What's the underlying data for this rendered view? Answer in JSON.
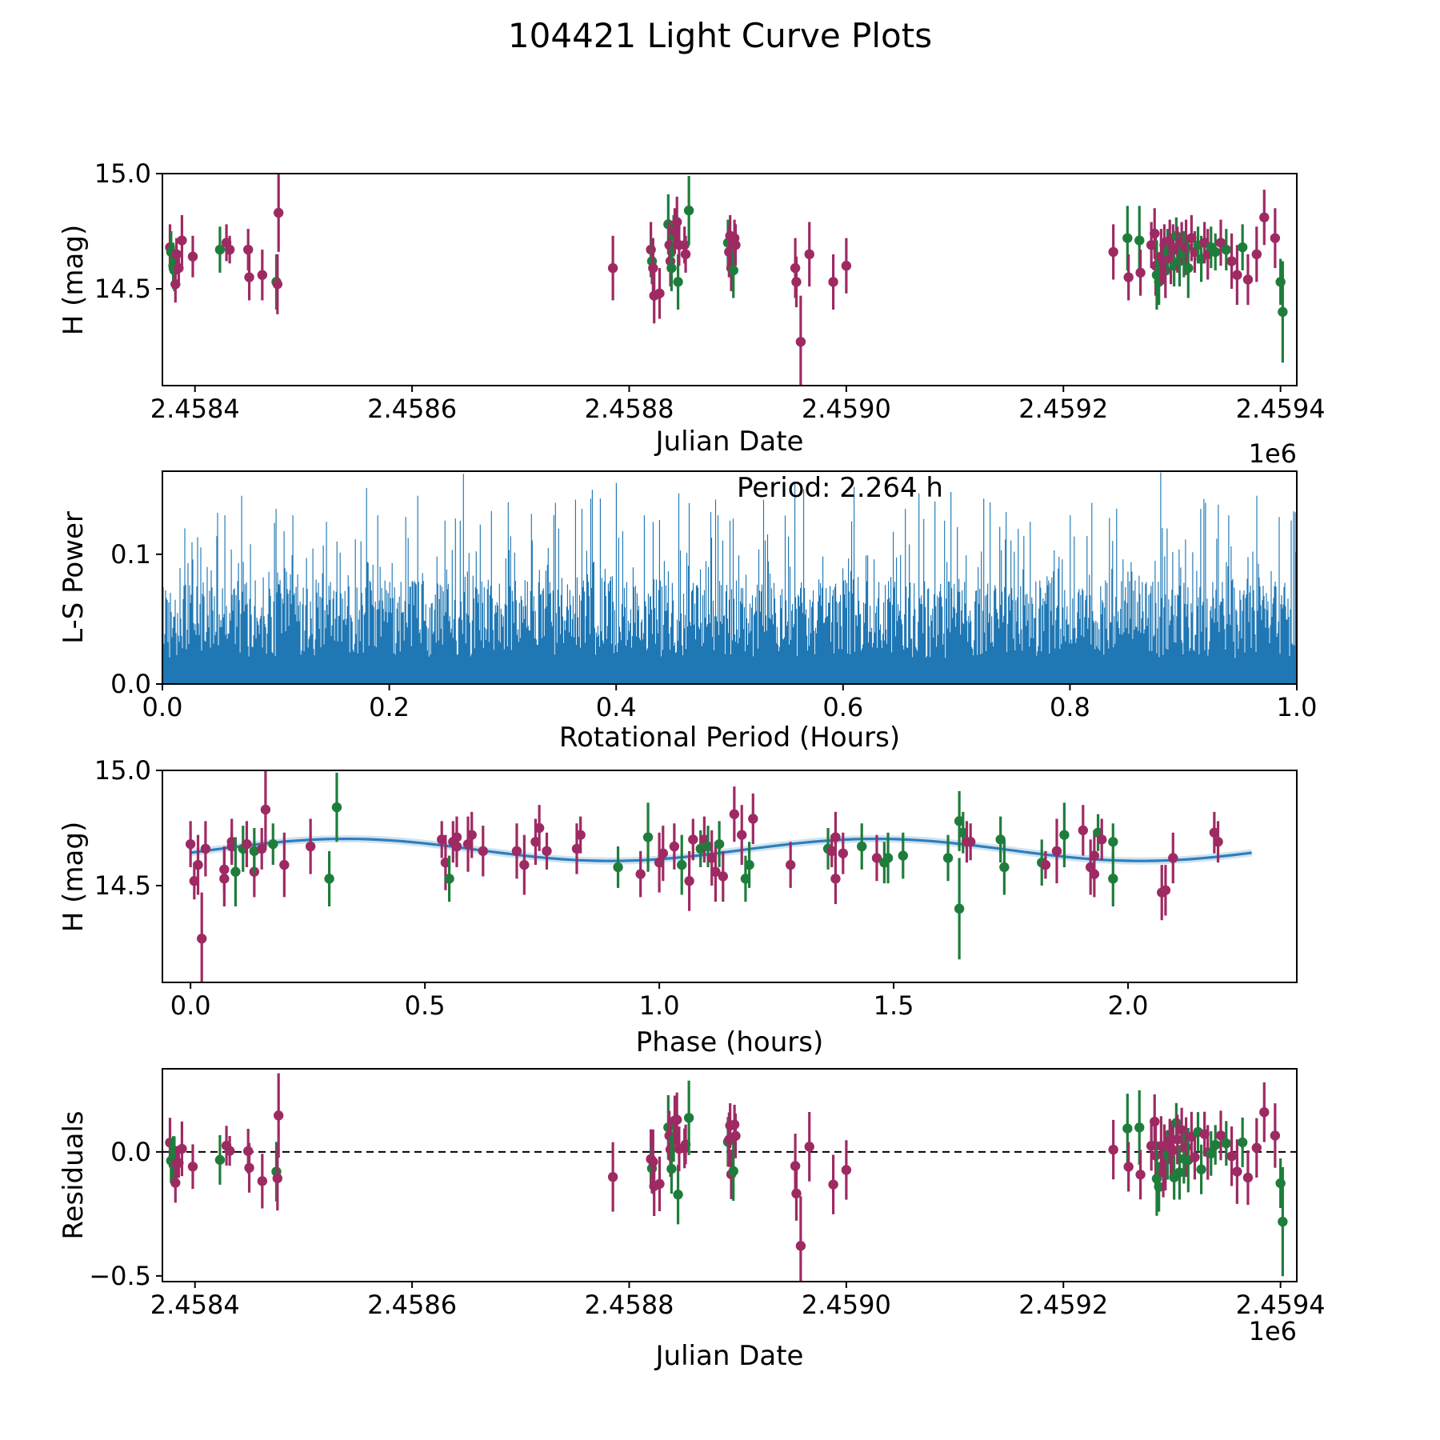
{
  "title": "104421 Light Curve Plots",
  "colors": {
    "green": "#1f7d3c",
    "purple": "#9e2a63",
    "blue": "#1f77b4",
    "fit_blue": "#2e7ebc",
    "axis": "#000000"
  },
  "chart_data": [
    {
      "id": "lightcurve_jd",
      "type": "scatter",
      "xlabel": "Julian Date",
      "ylabel": "H (mag)",
      "x_offset_label": "1e6",
      "xlim": [
        2458370,
        2459415
      ],
      "ylim": [
        14.08,
        15.0
      ],
      "xticks": [
        {
          "v": 2458400,
          "label": "2.4584"
        },
        {
          "v": 2458600,
          "label": "2.4586"
        },
        {
          "v": 2458800,
          "label": "2.4588"
        },
        {
          "v": 2459000,
          "label": "2.4590"
        },
        {
          "v": 2459200,
          "label": "2.4592"
        },
        {
          "v": 2459400,
          "label": "2.4594"
        }
      ],
      "yticks": [
        {
          "v": 15.0,
          "label": "15.0"
        },
        {
          "v": 14.5,
          "label": "14.5"
        }
      ],
      "series_colors": [
        "green",
        "purple"
      ],
      "point_format": [
        "julian_date",
        "H_mag",
        "err_mag",
        "series_index"
      ],
      "points": [
        [
          2458377,
          14.68,
          0.1,
          1
        ],
        [
          2458378,
          14.66,
          0.09,
          0
        ],
        [
          2458380,
          14.6,
          0.1,
          0
        ],
        [
          2458381,
          14.58,
          0.09,
          0
        ],
        [
          2458382,
          14.52,
          0.08,
          1
        ],
        [
          2458383,
          14.65,
          0.07,
          1
        ],
        [
          2458385,
          14.59,
          0.06,
          1
        ],
        [
          2458388,
          14.71,
          0.11,
          1
        ],
        [
          2458398,
          14.64,
          0.09,
          1
        ],
        [
          2458423,
          14.67,
          0.1,
          0
        ],
        [
          2458429,
          14.7,
          0.08,
          1
        ],
        [
          2458432,
          14.67,
          0.06,
          1
        ],
        [
          2458449,
          14.67,
          0.09,
          1
        ],
        [
          2458450,
          14.55,
          0.1,
          1
        ],
        [
          2458462,
          14.56,
          0.11,
          1
        ],
        [
          2458475,
          14.53,
          0.12,
          0
        ],
        [
          2458476,
          14.52,
          0.13,
          1
        ],
        [
          2458477,
          14.83,
          0.17,
          1
        ],
        [
          2458785,
          14.59,
          0.14,
          1
        ],
        [
          2458820,
          14.67,
          0.12,
          1
        ],
        [
          2458821,
          14.62,
          0.1,
          0
        ],
        [
          2458822,
          14.59,
          0.13,
          1
        ],
        [
          2458823,
          14.47,
          0.12,
          1
        ],
        [
          2458828,
          14.48,
          0.11,
          1
        ],
        [
          2458836,
          14.78,
          0.13,
          0
        ],
        [
          2458837,
          14.69,
          0.1,
          1
        ],
        [
          2458838,
          14.62,
          0.11,
          1
        ],
        [
          2458839,
          14.59,
          0.1,
          0
        ],
        [
          2458841,
          14.73,
          0.09,
          0
        ],
        [
          2458842,
          14.75,
          0.1,
          1
        ],
        [
          2458844,
          14.79,
          0.11,
          1
        ],
        [
          2458845,
          14.53,
          0.12,
          0
        ],
        [
          2458846,
          14.69,
          0.09,
          1
        ],
        [
          2458851,
          14.69,
          0.08,
          1
        ],
        [
          2458852,
          14.65,
          0.08,
          1
        ],
        [
          2458855,
          14.84,
          0.15,
          0
        ],
        [
          2458891,
          14.7,
          0.1,
          0
        ],
        [
          2458892,
          14.66,
          0.11,
          1
        ],
        [
          2458893,
          14.73,
          0.09,
          1
        ],
        [
          2458894,
          14.59,
          0.1,
          1
        ],
        [
          2458896,
          14.58,
          0.12,
          0
        ],
        [
          2458897,
          14.72,
          0.08,
          1
        ],
        [
          2458898,
          14.69,
          0.09,
          1
        ],
        [
          2458953,
          14.59,
          0.13,
          1
        ],
        [
          2458954,
          14.53,
          0.11,
          1
        ],
        [
          2458958,
          14.27,
          0.2,
          1
        ],
        [
          2458966,
          14.65,
          0.14,
          1
        ],
        [
          2458988,
          14.53,
          0.12,
          1
        ],
        [
          2459000,
          14.6,
          0.12,
          1
        ],
        [
          2459246,
          14.66,
          0.12,
          1
        ],
        [
          2459259,
          14.72,
          0.14,
          0
        ],
        [
          2459260,
          14.55,
          0.1,
          1
        ],
        [
          2459270,
          14.71,
          0.15,
          0
        ],
        [
          2459271,
          14.57,
          0.1,
          1
        ],
        [
          2459281,
          14.69,
          0.1,
          1
        ],
        [
          2459284,
          14.74,
          0.11,
          1
        ],
        [
          2459285,
          14.6,
          0.13,
          1
        ],
        [
          2459286,
          14.56,
          0.15,
          0
        ],
        [
          2459288,
          14.53,
          0.1,
          0
        ],
        [
          2459290,
          14.64,
          0.12,
          1
        ],
        [
          2459292,
          14.62,
          0.1,
          1
        ],
        [
          2459293,
          14.69,
          0.09,
          1
        ],
        [
          2459294,
          14.58,
          0.12,
          1
        ],
        [
          2459296,
          14.66,
          0.1,
          0
        ],
        [
          2459298,
          14.71,
          0.09,
          1
        ],
        [
          2459299,
          14.63,
          0.11,
          1
        ],
        [
          2459301,
          14.68,
          0.1,
          1
        ],
        [
          2459302,
          14.6,
          0.09,
          0
        ],
        [
          2459304,
          14.73,
          0.08,
          0
        ],
        [
          2459305,
          14.67,
          0.1,
          1
        ],
        [
          2459307,
          14.62,
          0.11,
          0
        ],
        [
          2459309,
          14.7,
          0.09,
          1
        ],
        [
          2459311,
          14.65,
          0.1,
          0
        ],
        [
          2459313,
          14.68,
          0.12,
          1
        ],
        [
          2459315,
          14.59,
          0.13,
          0
        ],
        [
          2459318,
          14.72,
          0.1,
          1
        ],
        [
          2459321,
          14.66,
          0.09,
          1
        ],
        [
          2459324,
          14.69,
          0.08,
          0
        ],
        [
          2459327,
          14.63,
          0.1,
          0
        ],
        [
          2459330,
          14.7,
          0.09,
          1
        ],
        [
          2459333,
          14.65,
          0.11,
          1
        ],
        [
          2459336,
          14.68,
          0.09,
          0
        ],
        [
          2459340,
          14.66,
          0.08,
          0
        ],
        [
          2459345,
          14.7,
          0.1,
          1
        ],
        [
          2459350,
          14.67,
          0.09,
          0
        ],
        [
          2459355,
          14.62,
          0.12,
          1
        ],
        [
          2459360,
          14.56,
          0.13,
          1
        ],
        [
          2459365,
          14.68,
          0.1,
          0
        ],
        [
          2459370,
          14.54,
          0.11,
          1
        ],
        [
          2459378,
          14.65,
          0.12,
          1
        ],
        [
          2459385,
          14.81,
          0.12,
          1
        ],
        [
          2459395,
          14.72,
          0.13,
          1
        ],
        [
          2459400,
          14.53,
          0.1,
          0
        ],
        [
          2459402,
          14.4,
          0.22,
          0
        ]
      ]
    },
    {
      "id": "periodogram",
      "type": "line",
      "xlabel": "Rotational Period (Hours)",
      "ylabel": "L-S Power",
      "annotation": "Period: 2.264 h",
      "best_period_hours": 2.264,
      "xlim": [
        0,
        1
      ],
      "ylim": [
        0,
        0.164
      ],
      "xticks": [
        {
          "v": 0.0,
          "label": "0.0"
        },
        {
          "v": 0.2,
          "label": "0.2"
        },
        {
          "v": 0.4,
          "label": "0.4"
        },
        {
          "v": 0.6,
          "label": "0.6"
        },
        {
          "v": 0.8,
          "label": "0.8"
        },
        {
          "v": 1.0,
          "label": "1.0"
        }
      ],
      "yticks": [
        {
          "v": 0.0,
          "label": "0.0"
        },
        {
          "v": 0.1,
          "label": "0.1"
        }
      ],
      "n_lines": 1418,
      "seed": 42,
      "noise_base": 0.02,
      "noise_span": 0.06,
      "spike_scale": 0.085,
      "spike_exponent": 8,
      "peaks": [
        [
          0.02,
          0.12
        ],
        [
          0.055,
          0.13
        ],
        [
          0.1,
          0.135
        ],
        [
          0.115,
          0.13
        ],
        [
          0.145,
          0.125
        ],
        [
          0.19,
          0.13
        ],
        [
          0.225,
          0.145
        ],
        [
          0.265,
          0.162
        ],
        [
          0.305,
          0.14
        ],
        [
          0.345,
          0.13
        ],
        [
          0.37,
          0.135
        ],
        [
          0.4,
          0.155
        ],
        [
          0.425,
          0.13
        ],
        [
          0.455,
          0.147
        ],
        [
          0.49,
          0.13
        ],
        [
          0.53,
          0.142
        ],
        [
          0.565,
          0.15
        ],
        [
          0.61,
          0.152
        ],
        [
          0.655,
          0.135
        ],
        [
          0.695,
          0.148
        ],
        [
          0.73,
          0.14
        ],
        [
          0.765,
          0.125
        ],
        [
          0.8,
          0.13
        ],
        [
          0.835,
          0.128
        ],
        [
          0.88,
          0.163
        ],
        [
          0.915,
          0.135
        ],
        [
          0.94,
          0.13
        ],
        [
          0.965,
          0.145
        ],
        [
          0.995,
          0.126
        ]
      ]
    },
    {
      "id": "phased_lightcurve",
      "type": "scatter+line",
      "xlabel": "Phase (hours)",
      "ylabel": "H (mag)",
      "xlim": [
        -0.06,
        2.36
      ],
      "ylim": [
        14.08,
        15.0
      ],
      "xticks": [
        {
          "v": 0.0,
          "label": "0.0"
        },
        {
          "v": 0.5,
          "label": "0.5"
        },
        {
          "v": 1.0,
          "label": "1.0"
        },
        {
          "v": 1.5,
          "label": "1.5"
        },
        {
          "v": 2.0,
          "label": "2.0"
        }
      ],
      "yticks": [
        {
          "v": 15.0,
          "label": "15.0"
        },
        {
          "v": 14.5,
          "label": "14.5"
        }
      ],
      "fit": {
        "mean": 14.655,
        "amplitude": 0.048,
        "period_hours": 2.264,
        "harmonic": 2,
        "phase_of_max": 0.33
      },
      "fold_epoch_jd": 2458377,
      "points_from": "lightcurve_jd",
      "curve_x_range": [
        0,
        2.264
      ]
    },
    {
      "id": "residuals",
      "type": "scatter",
      "xlabel": "Julian Date",
      "ylabel": "Residuals",
      "x_offset_label": "1e6",
      "xlim": [
        2458370,
        2459415
      ],
      "ylim": [
        -0.523,
        0.335
      ],
      "xticks": [
        {
          "v": 2458400,
          "label": "2.4584"
        },
        {
          "v": 2458600,
          "label": "2.4586"
        },
        {
          "v": 2458800,
          "label": "2.4588"
        },
        {
          "v": 2459000,
          "label": "2.4590"
        },
        {
          "v": 2459200,
          "label": "2.4592"
        },
        {
          "v": 2459400,
          "label": "2.4594"
        }
      ],
      "yticks": [
        {
          "v": 0.0,
          "label": "0.0"
        },
        {
          "v": -0.5,
          "label": "−0.5"
        }
      ],
      "zero_line": {
        "value": 0.0,
        "style": "dashed",
        "color": "#000000"
      },
      "points_from": "lightcurve_jd"
    }
  ]
}
